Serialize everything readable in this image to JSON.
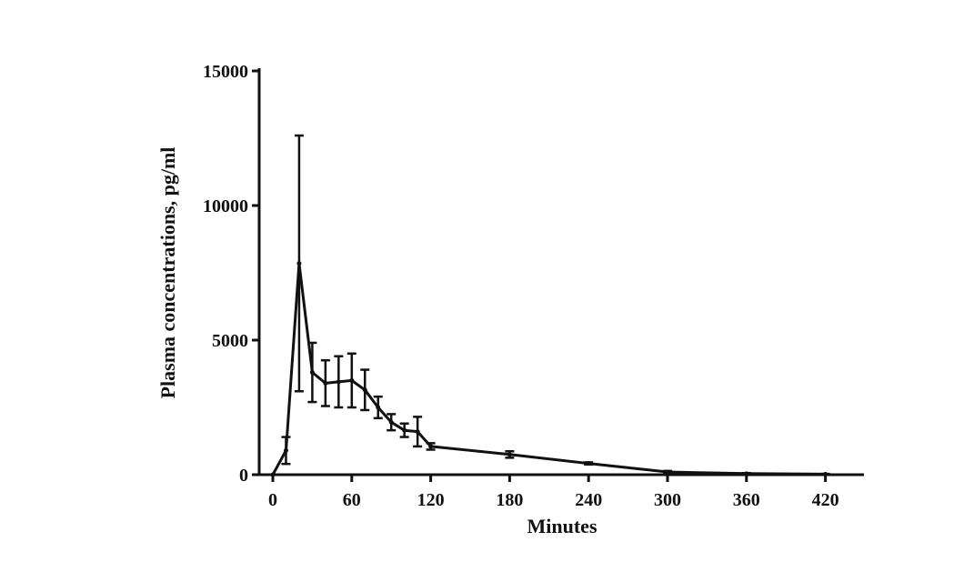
{
  "chart_data": {
    "type": "line",
    "title": "",
    "xlabel": "Minutes",
    "ylabel": "Plasma concentrations, pg/ml",
    "xlim": [
      0,
      450
    ],
    "ylim": [
      0,
      15000
    ],
    "xticks": [
      0,
      60,
      120,
      180,
      240,
      300,
      360,
      420
    ],
    "yticks": [
      0,
      5000,
      10000,
      15000
    ],
    "xtick_labels": [
      "0",
      "60",
      "120",
      "180",
      "240",
      "300",
      "360",
      "420"
    ],
    "ytick_labels": [
      "0",
      "5000",
      "10000",
      "15000"
    ],
    "grid": false,
    "legend": "none",
    "line_color": "#111111",
    "series": [
      {
        "x": [
          0,
          10,
          20,
          30,
          40,
          50,
          60,
          70,
          80,
          90,
          100,
          110,
          120,
          180,
          240,
          300,
          360,
          420
        ],
        "y": [
          0,
          900,
          7850,
          3800,
          3400,
          3450,
          3500,
          3150,
          2500,
          1950,
          1650,
          1600,
          1050,
          750,
          420,
          100,
          40,
          20
        ],
        "error": [
          0,
          500,
          4750,
          1100,
          850,
          950,
          1000,
          750,
          400,
          300,
          250,
          550,
          120,
          120,
          40,
          40,
          20,
          10
        ]
      }
    ]
  }
}
